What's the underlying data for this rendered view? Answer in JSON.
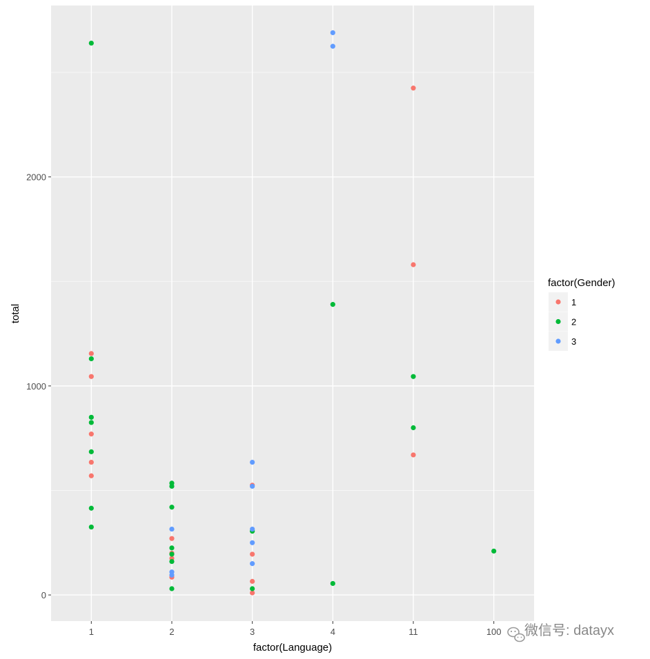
{
  "chart_data": {
    "type": "scatter",
    "title": "",
    "xlabel": "factor(Language)",
    "ylabel": "total",
    "categories": [
      "1",
      "2",
      "3",
      "4",
      "11",
      "100"
    ],
    "y_ticks": [
      0,
      1000,
      2000
    ],
    "y_tick_labels": [
      "0",
      "1000",
      "2000"
    ],
    "ylim": [
      -125,
      2820
    ],
    "legend": {
      "title": "factor(Gender)",
      "position": "right"
    },
    "series": [
      {
        "name": "1",
        "color": "#F8766D",
        "points": [
          {
            "x": "1",
            "y": 1155
          },
          {
            "x": "1",
            "y": 1045
          },
          {
            "x": "1",
            "y": 770
          },
          {
            "x": "1",
            "y": 635
          },
          {
            "x": "1",
            "y": 570
          },
          {
            "x": "2",
            "y": 270
          },
          {
            "x": "2",
            "y": 200
          },
          {
            "x": "2",
            "y": 175
          },
          {
            "x": "2",
            "y": 85
          },
          {
            "x": "3",
            "y": 525
          },
          {
            "x": "3",
            "y": 195
          },
          {
            "x": "3",
            "y": 65
          },
          {
            "x": "3",
            "y": 10
          },
          {
            "x": "11",
            "y": 2425
          },
          {
            "x": "11",
            "y": 1580
          },
          {
            "x": "11",
            "y": 670
          }
        ]
      },
      {
        "name": "2",
        "color": "#00BA38",
        "points": [
          {
            "x": "1",
            "y": 2640
          },
          {
            "x": "1",
            "y": 1130
          },
          {
            "x": "1",
            "y": 850
          },
          {
            "x": "1",
            "y": 825
          },
          {
            "x": "1",
            "y": 685
          },
          {
            "x": "1",
            "y": 415
          },
          {
            "x": "1",
            "y": 325
          },
          {
            "x": "2",
            "y": 535
          },
          {
            "x": "2",
            "y": 520
          },
          {
            "x": "2",
            "y": 420
          },
          {
            "x": "2",
            "y": 225
          },
          {
            "x": "2",
            "y": 195
          },
          {
            "x": "2",
            "y": 160
          },
          {
            "x": "2",
            "y": 30
          },
          {
            "x": "3",
            "y": 305
          },
          {
            "x": "3",
            "y": 30
          },
          {
            "x": "4",
            "y": 1390
          },
          {
            "x": "4",
            "y": 55
          },
          {
            "x": "11",
            "y": 1045
          },
          {
            "x": "11",
            "y": 800
          },
          {
            "x": "100",
            "y": 210
          }
        ]
      },
      {
        "name": "3",
        "color": "#619CFF",
        "points": [
          {
            "x": "2",
            "y": 315
          },
          {
            "x": "2",
            "y": 110
          },
          {
            "x": "2",
            "y": 95
          },
          {
            "x": "3",
            "y": 635
          },
          {
            "x": "3",
            "y": 520
          },
          {
            "x": "3",
            "y": 315
          },
          {
            "x": "3",
            "y": 250
          },
          {
            "x": "3",
            "y": 150
          },
          {
            "x": "4",
            "y": 2690
          },
          {
            "x": "4",
            "y": 2625
          }
        ]
      }
    ]
  },
  "watermark": {
    "text": "微信号: datayx"
  }
}
